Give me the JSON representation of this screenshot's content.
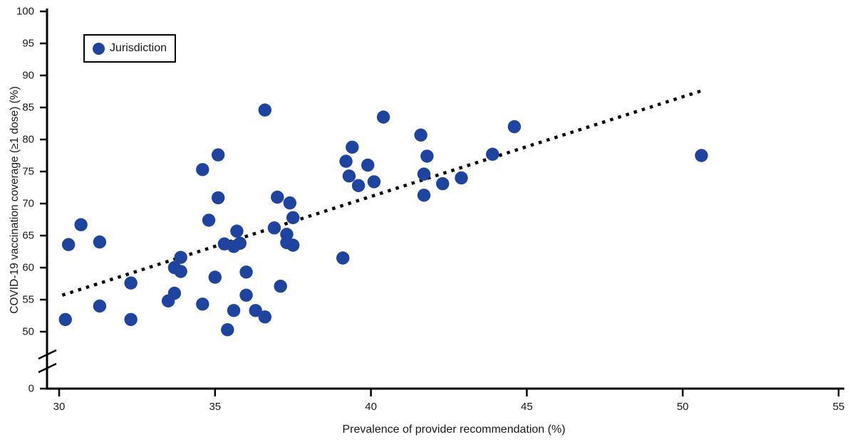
{
  "figure": {
    "legend": {
      "label": "Jurisdiction"
    }
  },
  "colors": {
    "point": "#1f43a0",
    "axis": "#000000",
    "trend": "#000000"
  },
  "chart_data": {
    "type": "scatter",
    "title": "",
    "xlabel": "Prevalence of provider recommendation (%)",
    "ylabel": "COVID-19 vaccination coverage (≥1 dose) (%)",
    "xlim": [
      30,
      55
    ],
    "ylim": [
      50,
      100
    ],
    "x_ticks": [
      30,
      35,
      40,
      45,
      50,
      55
    ],
    "y_ticks": [
      100,
      95,
      90,
      85,
      80,
      75,
      70,
      65,
      60,
      55,
      50
    ],
    "y_break_label": "0",
    "axis_break": true,
    "grid": false,
    "legend_position": "top-left",
    "series": [
      {
        "name": "Jurisdiction",
        "points": [
          [
            30.2,
            51.9
          ],
          [
            30.3,
            63.6
          ],
          [
            30.7,
            66.7
          ],
          [
            31.3,
            64.0
          ],
          [
            31.3,
            54.0
          ],
          [
            32.3,
            57.6
          ],
          [
            32.3,
            51.9
          ],
          [
            33.5,
            54.8
          ],
          [
            33.7,
            56.0
          ],
          [
            33.7,
            60.0
          ],
          [
            33.9,
            59.4
          ],
          [
            33.9,
            61.6
          ],
          [
            34.6,
            75.3
          ],
          [
            34.6,
            54.3
          ],
          [
            34.8,
            67.4
          ],
          [
            35.0,
            58.5
          ],
          [
            35.1,
            77.6
          ],
          [
            35.1,
            70.9
          ],
          [
            35.3,
            63.7
          ],
          [
            35.4,
            50.3
          ],
          [
            35.6,
            53.3
          ],
          [
            35.6,
            63.3
          ],
          [
            35.7,
            65.7
          ],
          [
            35.8,
            63.8
          ],
          [
            36.0,
            59.3
          ],
          [
            36.0,
            55.7
          ],
          [
            36.3,
            53.3
          ],
          [
            36.6,
            84.6
          ],
          [
            36.6,
            52.3
          ],
          [
            36.9,
            66.2
          ],
          [
            37.0,
            71.0
          ],
          [
            37.1,
            57.1
          ],
          [
            37.3,
            65.2
          ],
          [
            37.3,
            63.9
          ],
          [
            37.4,
            70.1
          ],
          [
            37.5,
            67.8
          ],
          [
            37.5,
            63.5
          ],
          [
            39.1,
            61.5
          ],
          [
            39.2,
            76.6
          ],
          [
            39.3,
            74.3
          ],
          [
            39.4,
            78.8
          ],
          [
            39.6,
            72.8
          ],
          [
            39.9,
            76.0
          ],
          [
            40.1,
            73.4
          ],
          [
            40.4,
            83.5
          ],
          [
            41.6,
            80.7
          ],
          [
            41.7,
            74.6
          ],
          [
            41.7,
            71.3
          ],
          [
            41.8,
            77.4
          ],
          [
            42.3,
            73.1
          ],
          [
            42.9,
            74.0
          ],
          [
            43.9,
            77.7
          ],
          [
            44.6,
            82.0
          ],
          [
            50.6,
            77.5
          ]
        ]
      }
    ],
    "trendline": {
      "style": "dotted",
      "x1": 30.1,
      "y1": 55.7,
      "x2": 50.6,
      "y2": 87.6
    }
  }
}
